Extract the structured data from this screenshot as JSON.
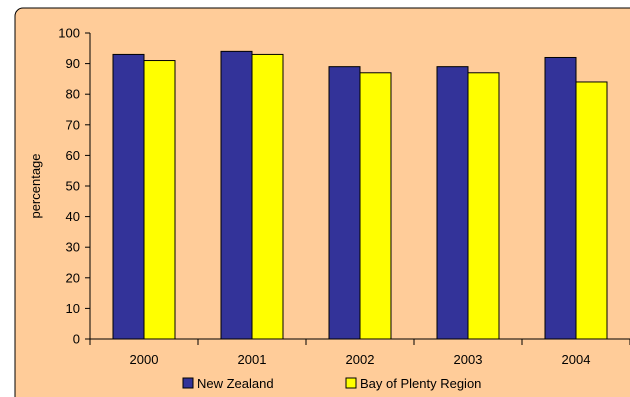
{
  "chart_data": {
    "type": "bar",
    "title": "",
    "xlabel": "",
    "ylabel": "percentage",
    "ylim": [
      0,
      100
    ],
    "yticks": [
      0,
      10,
      20,
      30,
      40,
      50,
      60,
      70,
      80,
      90,
      100
    ],
    "categories": [
      "2000",
      "2001",
      "2002",
      "2003",
      "2004"
    ],
    "series": [
      {
        "name": "New Zealand",
        "color": "#333399",
        "values": [
          93,
          94,
          89,
          89,
          92
        ]
      },
      {
        "name": "Bay of Plenty Region",
        "color": "#FFFF00",
        "values": [
          91,
          93,
          87,
          87,
          84
        ]
      }
    ],
    "grid": false,
    "legend_position": "bottom",
    "background_color": "#FFCC99",
    "frame_color": "#000000"
  }
}
